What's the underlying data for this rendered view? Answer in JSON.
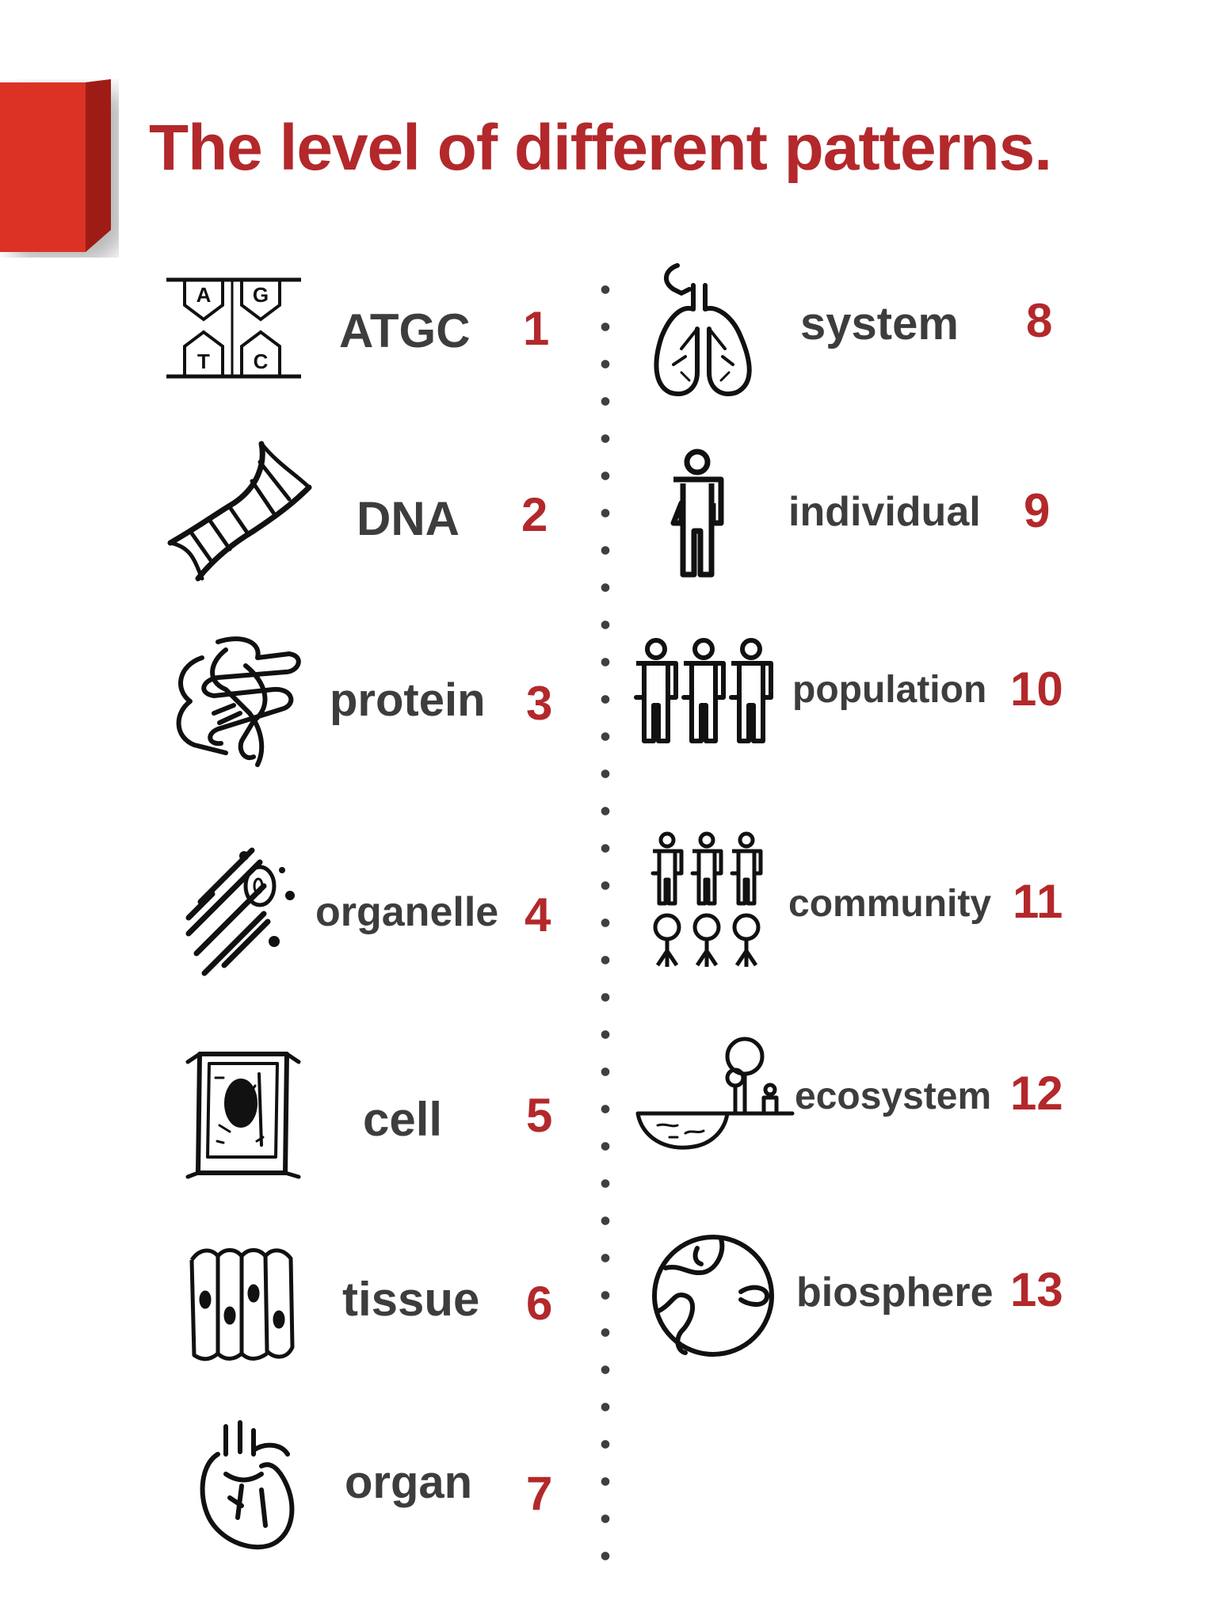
{
  "title": "The level of different patterns.",
  "colors": {
    "accent": "#b3282b",
    "label": "#3d3d3d",
    "icon": "#111111",
    "divider": "#3f3f3f"
  },
  "levels": [
    {
      "label": "ATGC",
      "number": "1",
      "icon": "atgc-base-pair-icon"
    },
    {
      "label": "DNA",
      "number": "2",
      "icon": "dna-helix-icon"
    },
    {
      "label": "protein",
      "number": "3",
      "icon": "protein-fold-icon"
    },
    {
      "label": "organelle",
      "number": "4",
      "icon": "organelle-icon"
    },
    {
      "label": "cell",
      "number": "5",
      "icon": "cell-icon"
    },
    {
      "label": "tissue",
      "number": "6",
      "icon": "tissue-icon"
    },
    {
      "label": "organ",
      "number": "7",
      "icon": "heart-organ-icon"
    },
    {
      "label": "system",
      "number": "8",
      "icon": "respiratory-system-icon"
    },
    {
      "label": "individual",
      "number": "9",
      "icon": "person-icon"
    },
    {
      "label": "population",
      "number": "10",
      "icon": "population-icon"
    },
    {
      "label": "community",
      "number": "11",
      "icon": "community-icon"
    },
    {
      "label": "ecosystem",
      "number": "12",
      "icon": "ecosystem-icon"
    },
    {
      "label": "biosphere",
      "number": "13",
      "icon": "globe-biosphere-icon"
    }
  ],
  "atgc_letters": [
    "A",
    "G",
    "T",
    "C"
  ]
}
